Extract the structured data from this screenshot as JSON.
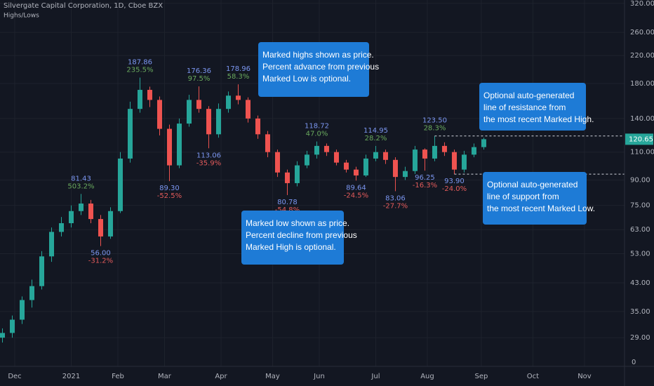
{
  "chart_data": {
    "type": "candlestick",
    "title": "Silvergate Capital Corporation, 1D, Cboe BZX",
    "subtitle": "Highs/Lows",
    "log_scale": true,
    "grid": true,
    "up_color": "#26a69a",
    "down_color": "#ef5350",
    "xlim": [
      -6,
      248.3
    ],
    "xticks": [
      {
        "value": 0,
        "label": "Dec"
      },
      {
        "value": 23,
        "label": "2021"
      },
      {
        "value": 42,
        "label": "Feb"
      },
      {
        "value": 61,
        "label": "Mar"
      },
      {
        "value": 84,
        "label": "Apr"
      },
      {
        "value": 105,
        "label": "May"
      },
      {
        "value": 124,
        "label": "Jun"
      },
      {
        "value": 147,
        "label": "Jul"
      },
      {
        "value": 168,
        "label": "Aug"
      },
      {
        "value": 190,
        "label": "Sep"
      },
      {
        "value": 211,
        "label": "Oct"
      },
      {
        "value": 232,
        "label": "Nov"
      }
    ],
    "ylim": [
      23.6,
      328
    ],
    "yticks": [
      {
        "value": 320,
        "label": "320.00"
      },
      {
        "value": 260,
        "label": "260.00"
      },
      {
        "value": 220,
        "label": "220.00"
      },
      {
        "value": 180,
        "label": "180.00"
      },
      {
        "value": 140,
        "label": "140.00"
      },
      {
        "value": 110,
        "label": "110.00"
      },
      {
        "value": 90,
        "label": "90.00"
      },
      {
        "value": 75,
        "label": "75.00"
      },
      {
        "value": 63,
        "label": "63.00"
      },
      {
        "value": 53,
        "label": "53.00"
      },
      {
        "value": 43,
        "label": "43.00"
      },
      {
        "value": 35,
        "label": "35.00"
      },
      {
        "value": 29,
        "label": "29.00"
      }
    ],
    "axis_corner_label": "0",
    "last_price": 120.65,
    "candles": [
      [
        -5,
        29,
        31,
        28,
        30
      ],
      [
        -1,
        30,
        34,
        29,
        33
      ],
      [
        3,
        33,
        39,
        32,
        38
      ],
      [
        7,
        38,
        44,
        36,
        42
      ],
      [
        11,
        42,
        54,
        41,
        52
      ],
      [
        15,
        52,
        64,
        50,
        62
      ],
      [
        19,
        62,
        69,
        60,
        66
      ],
      [
        23,
        66,
        75,
        64,
        72
      ],
      [
        27,
        72,
        81.43,
        70,
        76
      ],
      [
        31,
        76,
        78,
        66,
        68
      ],
      [
        35,
        68,
        70,
        56,
        60
      ],
      [
        39,
        60,
        74,
        59,
        72
      ],
      [
        43,
        72,
        110,
        71,
        105
      ],
      [
        47,
        105,
        158,
        102,
        150
      ],
      [
        51,
        150,
        187.86,
        146,
        172
      ],
      [
        55,
        172,
        176,
        152,
        160
      ],
      [
        59,
        160,
        164,
        124,
        130
      ],
      [
        63,
        130,
        134,
        89.3,
        100
      ],
      [
        67,
        100,
        140,
        98,
        135
      ],
      [
        71,
        135,
        166,
        132,
        160
      ],
      [
        75,
        160,
        176.36,
        146,
        150
      ],
      [
        79,
        150,
        153,
        113.06,
        125
      ],
      [
        83,
        125,
        156,
        122,
        150
      ],
      [
        87,
        150,
        170,
        146,
        165
      ],
      [
        91,
        165,
        178.96,
        155,
        160
      ],
      [
        95,
        160,
        163,
        136,
        140
      ],
      [
        99,
        140,
        143,
        121,
        125
      ],
      [
        103,
        125,
        128,
        106,
        110
      ],
      [
        107,
        110,
        112,
        92,
        95
      ],
      [
        111,
        95,
        97,
        80.78,
        88
      ],
      [
        115,
        88,
        103,
        86,
        100
      ],
      [
        119,
        100,
        111,
        98,
        108
      ],
      [
        123,
        108,
        118.72,
        105,
        115
      ],
      [
        127,
        115,
        117,
        107,
        110
      ],
      [
        131,
        110,
        112,
        100,
        102
      ],
      [
        135,
        102,
        104,
        95,
        97
      ],
      [
        139,
        97,
        99,
        89.64,
        93
      ],
      [
        143,
        93,
        108,
        92,
        105
      ],
      [
        147,
        105,
        114.95,
        103,
        110
      ],
      [
        151,
        110,
        112,
        101,
        104
      ],
      [
        155,
        104,
        106,
        83.06,
        92
      ],
      [
        159,
        92,
        99,
        90,
        96
      ],
      [
        163,
        96,
        115,
        94,
        112
      ],
      [
        167,
        112,
        113,
        96.25,
        105
      ],
      [
        171,
        105,
        123.5,
        103,
        115
      ],
      [
        175,
        115,
        118,
        107,
        110
      ],
      [
        179,
        110,
        112,
        93.9,
        97
      ],
      [
        183,
        97,
        111,
        95,
        108
      ],
      [
        187,
        108,
        117,
        106,
        114
      ],
      [
        191,
        114,
        122,
        112,
        120.65
      ]
    ],
    "highs": {
      "x": [
        27,
        51,
        75,
        91,
        123,
        147,
        171
      ],
      "values": [
        81.43,
        187.86,
        176.36,
        178.96,
        118.72,
        114.95,
        123.5
      ],
      "value_labels": [
        "81.43",
        "187.86",
        "176.36",
        "178.96",
        "118.72",
        "114.95",
        "123.50"
      ],
      "pct": [
        503.2,
        235.5,
        97.5,
        58.3,
        47,
        28.2,
        28.3
      ],
      "pct_labels": [
        "503.2%",
        "235.5%",
        "97.5%",
        "58.3%",
        "47.0%",
        "28.2%",
        "28.3%"
      ],
      "price_color": "#7b96f0",
      "pct_color": "#6aaa5e"
    },
    "lows": {
      "x": [
        35,
        63,
        79,
        111,
        139,
        155,
        167,
        179
      ],
      "values": [
        56,
        89.3,
        113.06,
        80.78,
        89.64,
        83.06,
        96.25,
        93.9
      ],
      "value_labels": [
        "56.00",
        "89.30",
        "113.06",
        "80.78",
        "89.64",
        "83.06",
        "96.25",
        "93.90"
      ],
      "pct": [
        -31.2,
        -52.5,
        -35.9,
        -54.8,
        -24.5,
        -27.7,
        -16.3,
        -24.0
      ],
      "pct_labels": [
        "-31.2%",
        "-52.5%",
        "-35.9%",
        "-54.8%",
        "-24.5%",
        "-27.7%",
        "-16.3%",
        "-24.0%"
      ],
      "price_color": "#7b96f0",
      "pct_color": "#e45b5b"
    },
    "resistance": {
      "x": 171,
      "value": 123.5
    },
    "support": {
      "x": 179,
      "value": 93.9
    },
    "callouts": [
      {
        "lines": [
          "Marked highs shown as price.",
          "Percent advance from previous",
          "Marked Low is optional."
        ]
      },
      {
        "lines": [
          "Marked low shown as price.",
          "Percent decline from previous",
          "Marked High is optional."
        ]
      },
      {
        "lines": [
          "Optional auto-generated",
          "line of resistance from",
          "the most recent Marked High."
        ]
      },
      {
        "lines": [
          "Optional auto-generated",
          "line of support from",
          "the most recent Marked Low."
        ]
      }
    ],
    "callout_color": "#1e7bd6"
  }
}
